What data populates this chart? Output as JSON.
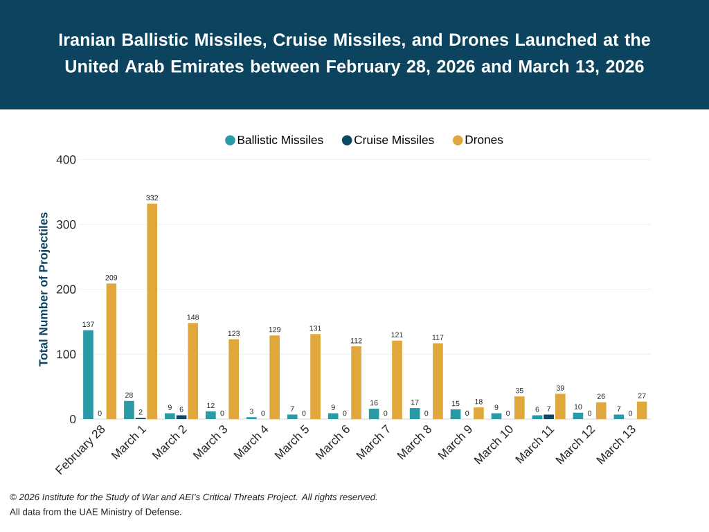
{
  "chart_data": {
    "type": "bar",
    "title": "Iranian Ballistic Missiles, Cruise Missiles, and Drones Launched at the United Arab Emirates between February 28, 2026 and March 13, 2026",
    "ylabel": "Total Number of Projectiles",
    "categories": [
      "February 28",
      "March 1",
      "March 2",
      "March 3",
      "March 4",
      "March 5",
      "March 6",
      "March 7",
      "March 8",
      "March 9",
      "March 10",
      "March 11",
      "March 12",
      "March 13"
    ],
    "series": [
      {
        "name": "Ballistic Missiles",
        "color": "#2a9aa6",
        "values": [
          137,
          28,
          9,
          12,
          3,
          7,
          9,
          16,
          17,
          15,
          9,
          6,
          10,
          7
        ]
      },
      {
        "name": "Cruise Missiles",
        "color": "#0d4763",
        "values": [
          0,
          2,
          6,
          0,
          0,
          0,
          0,
          0,
          0,
          0,
          0,
          7,
          0,
          0
        ]
      },
      {
        "name": "Drones",
        "color": "#e0a83c",
        "values": [
          209,
          332,
          148,
          123,
          129,
          131,
          112,
          121,
          117,
          18,
          35,
          39,
          26,
          27
        ]
      }
    ],
    "ylim": [
      0,
      400
    ],
    "yticks": [
      0,
      100,
      200,
      300,
      400
    ],
    "grid": "y",
    "legend": "top",
    "data_labels": true,
    "annotations": [
      "© 2026 Institute for the Study of War and AEI’s Critical Threats Project. All rights reserved.",
      "All data from the UAE Ministry of Defense."
    ]
  }
}
